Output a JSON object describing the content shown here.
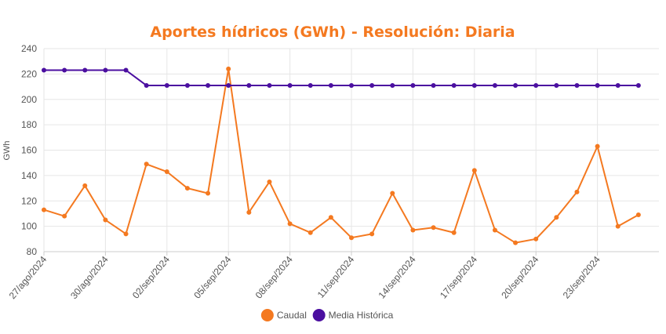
{
  "chart_data": {
    "type": "line",
    "title": "Aportes hídricos (GWh) - Resolución: Diaria",
    "xlabel": "",
    "ylabel": "GWh",
    "ylim": [
      80,
      240
    ],
    "yticks": [
      80,
      100,
      120,
      140,
      160,
      180,
      200,
      220,
      240
    ],
    "grid": true,
    "legend_position": "bottom",
    "x": [
      "27/ago/2024",
      "28/ago/2024",
      "29/ago/2024",
      "30/ago/2024",
      "31/ago/2024",
      "01/sep/2024",
      "02/sep/2024",
      "03/sep/2024",
      "04/sep/2024",
      "05/sep/2024",
      "06/sep/2024",
      "07/sep/2024",
      "08/sep/2024",
      "09/sep/2024",
      "10/sep/2024",
      "11/sep/2024",
      "12/sep/2024",
      "13/sep/2024",
      "14/sep/2024",
      "15/sep/2024",
      "16/sep/2024",
      "17/sep/2024",
      "18/sep/2024",
      "19/sep/2024",
      "20/sep/2024",
      "21/sep/2024",
      "22/sep/2024",
      "23/sep/2024",
      "24/sep/2024",
      "25/sep/2024"
    ],
    "tick_labels": [
      "27/ago/2024",
      "30/ago/2024",
      "02/sep/2024",
      "05/sep/2024",
      "08/sep/2024",
      "11/sep/2024",
      "14/sep/2024",
      "17/sep/2024",
      "20/sep/2024",
      "23/sep/2024"
    ],
    "series": [
      {
        "name": "Caudal",
        "color": "#F47920",
        "values": [
          113,
          108,
          132,
          105,
          94,
          149,
          143,
          130,
          126,
          224,
          111,
          135,
          102,
          95,
          107,
          91,
          94,
          126,
          97,
          99,
          95,
          144,
          97,
          87,
          90,
          107,
          127,
          163,
          100,
          109
        ]
      },
      {
        "name": "Media Histórica",
        "color": "#4B0FA0",
        "values": [
          223,
          223,
          223,
          223,
          223,
          211,
          211,
          211,
          211,
          211,
          211,
          211,
          211,
          211,
          211,
          211,
          211,
          211,
          211,
          211,
          211,
          211,
          211,
          211,
          211,
          211,
          211,
          211,
          211,
          211
        ]
      }
    ],
    "title_color": "#F47920"
  }
}
